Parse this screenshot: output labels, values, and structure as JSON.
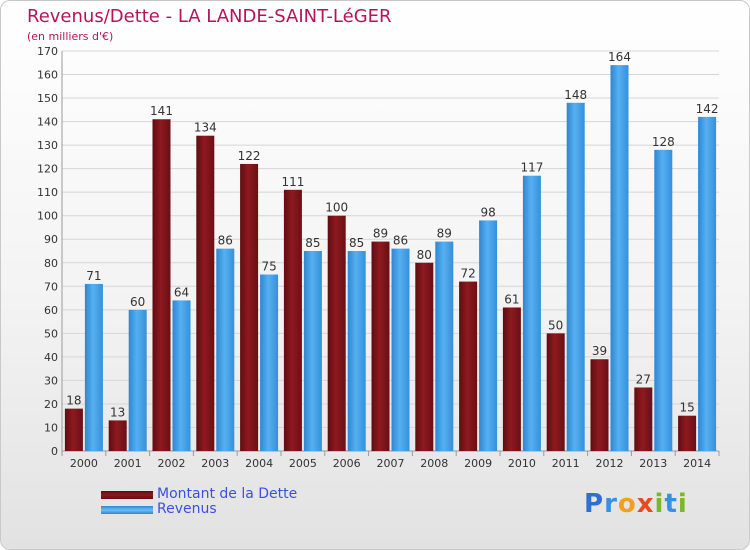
{
  "header": {
    "title": "Revenus/Dette - LA LANDE-SAINT-LéGER",
    "subtitle": "(en milliers d'€)"
  },
  "legend": {
    "items": [
      {
        "label": "Montant de la Dette",
        "color": "#7b1218"
      },
      {
        "label": "Revenus",
        "color": "#3d9be4"
      }
    ]
  },
  "logo": {
    "text": "Proxiti"
  },
  "colors": {
    "title": "#b5145b",
    "dette": "#7b1218",
    "revenus": "#3d9be4"
  },
  "chart_data": {
    "type": "bar",
    "title": "Revenus/Dette - LA LANDE-SAINT-LéGER",
    "subtitle": "(en milliers d'€)",
    "categories": [
      "2000",
      "2001",
      "2002",
      "2003",
      "2004",
      "2005",
      "2006",
      "2007",
      "2008",
      "2009",
      "2010",
      "2011",
      "2012",
      "2013",
      "2014"
    ],
    "series": [
      {
        "name": "Montant de la Dette",
        "color": "#7b1218",
        "values": [
          18,
          13,
          141,
          134,
          122,
          111,
          100,
          89,
          80,
          72,
          61,
          50,
          39,
          27,
          15
        ]
      },
      {
        "name": "Revenus",
        "color": "#3d9be4",
        "values": [
          71,
          60,
          64,
          86,
          75,
          85,
          85,
          86,
          89,
          98,
          117,
          148,
          164,
          128,
          142
        ]
      }
    ],
    "ylim": [
      0,
      170
    ],
    "yticks": [
      0,
      10,
      20,
      30,
      40,
      50,
      60,
      70,
      80,
      90,
      100,
      110,
      120,
      130,
      140,
      150,
      160,
      170
    ],
    "grid": true,
    "legend_position": "bottom-left"
  }
}
